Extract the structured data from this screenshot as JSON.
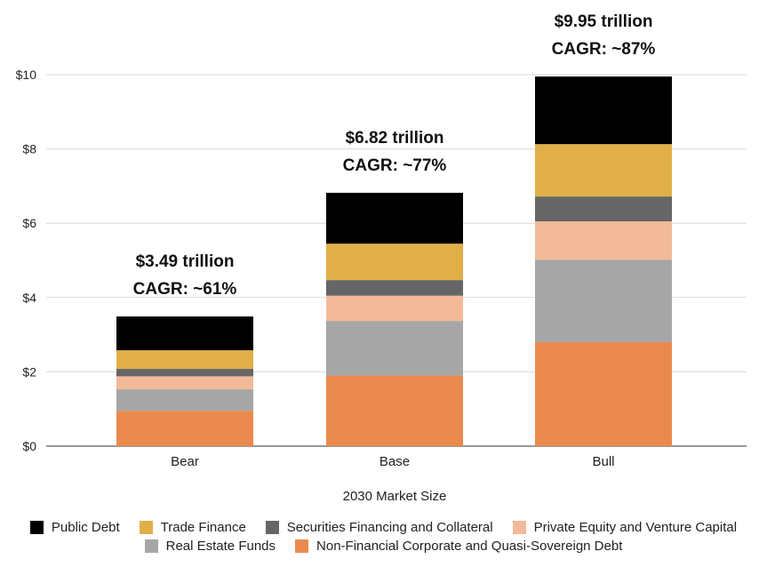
{
  "chart_data": {
    "type": "bar",
    "stacked": true,
    "title": "",
    "xlabel": "2030 Market Size",
    "ylabel": "",
    "ylim": [
      0,
      10
    ],
    "yticks": [
      0,
      2,
      4,
      6,
      8,
      10
    ],
    "ytick_labels": [
      "$0",
      "$2",
      "$4",
      "$6",
      "$8",
      "$10"
    ],
    "categories": [
      "Bear",
      "Base",
      "Bull"
    ],
    "series": [
      {
        "name": "Non-Financial Corporate and Quasi-Sovereign Debt",
        "color": "#EA8A4E",
        "values": [
          0.95,
          1.9,
          2.8
        ]
      },
      {
        "name": "Real Estate Funds",
        "color": "#A6A6A6",
        "values": [
          0.58,
          1.47,
          2.22
        ]
      },
      {
        "name": "Private Equity and Venture Capital",
        "color": "#F2BA98",
        "values": [
          0.35,
          0.68,
          1.03
        ]
      },
      {
        "name": "Securities Financing and Collateral",
        "color": "#666666",
        "values": [
          0.2,
          0.42,
          0.67
        ]
      },
      {
        "name": "Trade Finance",
        "color": "#E1AF48",
        "values": [
          0.5,
          0.98,
          1.41
        ]
      },
      {
        "name": "Public Debt",
        "color": "#000000",
        "values": [
          0.91,
          1.37,
          1.82
        ]
      }
    ],
    "annotations": [
      {
        "category": "Bear",
        "total": "$3.49 trillion",
        "cagr": "CAGR: ~61%"
      },
      {
        "category": "Base",
        "total": "$6.82 trillion",
        "cagr": "CAGR: ~77%"
      },
      {
        "category": "Bull",
        "total": "$9.95 trillion",
        "cagr": "CAGR: ~87%"
      }
    ],
    "grid": true,
    "legend_position": "bottom"
  },
  "legend": {
    "row1": [
      {
        "label": "Public Debt",
        "color": "#000000"
      },
      {
        "label": "Trade Finance",
        "color": "#E1AF48"
      },
      {
        "label": "Securities Financing and Collateral",
        "color": "#666666"
      },
      {
        "label": "Private Equity and Venture Capital",
        "color": "#F2BA98"
      }
    ],
    "row2": [
      {
        "label": "Real Estate Funds",
        "color": "#A6A6A6"
      },
      {
        "label": "Non-Financial Corporate and Quasi-Sovereign Debt",
        "color": "#EA8A4E"
      }
    ]
  }
}
